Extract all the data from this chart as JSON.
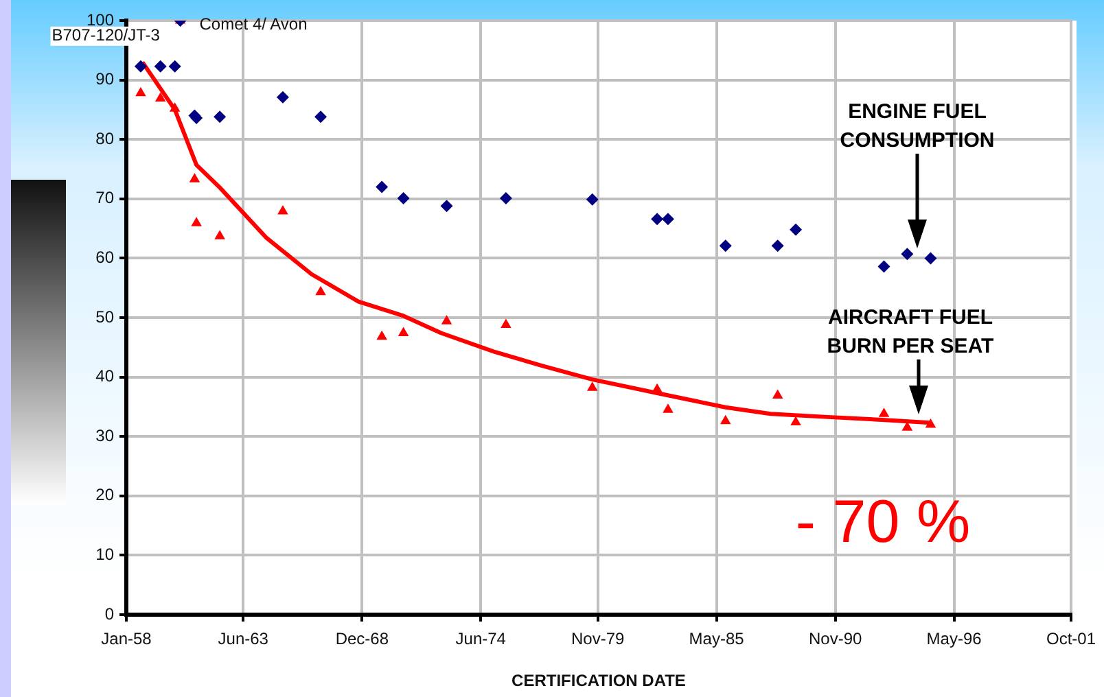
{
  "chart_data": {
    "type": "scatter",
    "xlabel": "CERTIFICATION DATE",
    "xlim": [
      "1958-01",
      "2001-10"
    ],
    "ylim": [
      0,
      100
    ],
    "xticks": [
      {
        "value": "1958-01",
        "label": "Jan-58"
      },
      {
        "value": "1963-06",
        "label": "Jun-63"
      },
      {
        "value": "1968-12",
        "label": "Dec-68"
      },
      {
        "value": "1974-06",
        "label": "Jun-74"
      },
      {
        "value": "1979-11",
        "label": "Nov-79"
      },
      {
        "value": "1985-05",
        "label": "May-85"
      },
      {
        "value": "1990-11",
        "label": "Nov-90"
      },
      {
        "value": "1996-05",
        "label": "May-96"
      },
      {
        "value": "2001-10",
        "label": "Oct-01"
      }
    ],
    "yticks": [
      0,
      10,
      20,
      30,
      40,
      50,
      60,
      70,
      80,
      90,
      100
    ],
    "grid": true,
    "legend": false,
    "series": [
      {
        "color": "#000080",
        "marker": "diamond",
        "x": [
          "1958-09",
          "1959-08",
          "1960-04",
          "1960-07",
          "1961-04",
          "1961-03",
          "1962-05",
          "1965-04",
          "1967-01",
          "1969-11",
          "1970-11",
          "1972-11",
          "1975-08",
          "1979-08",
          "1982-08",
          "1983-02",
          "1985-10",
          "1988-03",
          "1989-01",
          "1993-02",
          "1994-03",
          "1995-04"
        ],
        "values": [
          92.3,
          92.3,
          92.3,
          100,
          83.6,
          84,
          83.8,
          87.1,
          83.8,
          72,
          70.1,
          68.8,
          70.1,
          69.9,
          66.6,
          66.6,
          62.1,
          62.1,
          64.8,
          58.6,
          60.7,
          60
        ]
      },
      {
        "color": "#ff0000",
        "marker": "triangle",
        "x": [
          "1958-09",
          "1959-08",
          "1960-04",
          "1960-07",
          "1961-03",
          "1961-04",
          "1962-05",
          "1965-04",
          "1967-01",
          "1969-11",
          "1970-11",
          "1972-11",
          "1975-08",
          "1979-08",
          "1982-08",
          "1983-02",
          "1985-10",
          "1988-03",
          "1989-01",
          "1993-02",
          "1994-03",
          "1995-04"
        ],
        "values": [
          87.8,
          86.9,
          85.2,
          100,
          73.3,
          65.9,
          63.7,
          67.9,
          54.3,
          46.8,
          47.4,
          49.4,
          48.8,
          38.2,
          37.9,
          34.5,
          32.6,
          36.9,
          32.4,
          33.8,
          31.5,
          32
        ]
      },
      {
        "type": "line",
        "color": "#ff0000",
        "marker": "none",
        "x": [
          "1958-10",
          "1960-04",
          "1961-04",
          "1962-05",
          "1964-07",
          "1966-08",
          "1968-10",
          "1970-11",
          "1972-08",
          "1975-02",
          "1977-04",
          "1979-08",
          "1982-08",
          "1985-10",
          "1987-11",
          "1990-05",
          "1993-01",
          "1995-04"
        ],
        "values": [
          93,
          85,
          75.7,
          71.9,
          63.4,
          57.3,
          52.7,
          50.3,
          47.4,
          44.2,
          41.9,
          39.6,
          37.3,
          34.9,
          33.8,
          33.3,
          32.8,
          32.3
        ]
      }
    ],
    "annotations": [
      {
        "text": "Comet 4/ Avon",
        "x": "1960-07",
        "y": 100
      },
      {
        "text": "B707-120/JT-3",
        "x": "1958-09",
        "y": 92.3
      },
      "ENGINE FUEL CONSUMPTION",
      "AIRCRAFT FUEL BURN PER SEAT",
      "- 70 %"
    ]
  }
}
